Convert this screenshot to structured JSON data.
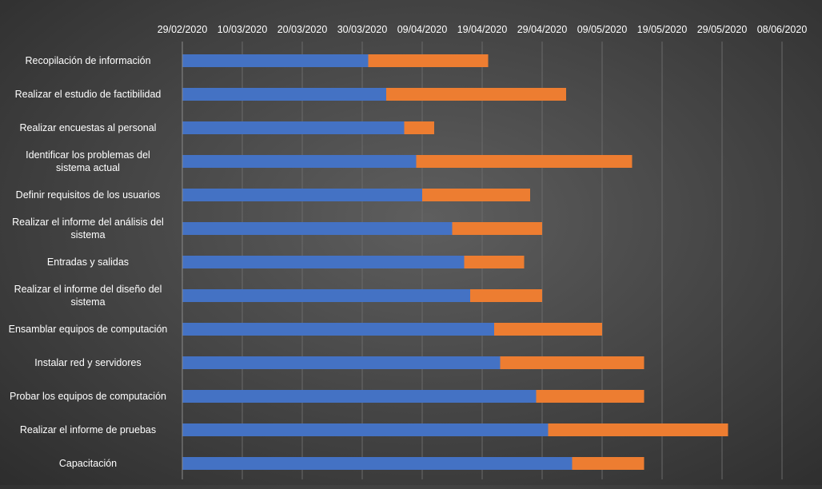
{
  "chart_data": {
    "type": "bar",
    "orientation": "horizontal-stacked",
    "title": "",
    "xlabel": "",
    "ylabel": "",
    "x_axis": {
      "type": "date",
      "position": "top",
      "min": "2020-02-29",
      "max": "2020-06-08",
      "tick_labels": [
        "29/02/2020",
        "10/03/2020",
        "20/03/2020",
        "30/03/2020",
        "09/04/2020",
        "19/04/2020",
        "29/04/2020",
        "09/05/2020",
        "19/05/2020",
        "29/05/2020",
        "08/06/2020"
      ],
      "gridlines": true
    },
    "legend": "none",
    "categories": [
      "Recopilación de información",
      "Realizar el estudio de factibilidad",
      "Realizar encuestas al personal",
      "Identificar los problemas del sistema actual",
      "Definir requisitos de los usuarios",
      "Realizar el informe del análisis del sistema",
      "Entradas y salidas",
      "Realizar el informe del diseño del sistema",
      "Ensamblar equipos de computación",
      "Instalar red y servidores",
      "Probar los equipos de computación",
      "Realizar el informe de pruebas",
      "Capacitación"
    ],
    "series": [
      {
        "role": "start",
        "color": "#4472C4",
        "values": [
          "2020-03-31",
          "2020-04-03",
          "2020-04-06",
          "2020-04-08",
          "2020-04-09",
          "2020-04-14",
          "2020-04-16",
          "2020-04-17",
          "2020-04-21",
          "2020-04-22",
          "2020-04-28",
          "2020-04-30",
          "2020-05-04"
        ]
      },
      {
        "role": "duration",
        "color": "#ED7D31",
        "values": [
          20,
          30,
          5,
          36,
          18,
          15,
          10,
          12,
          18,
          24,
          18,
          30,
          12
        ]
      }
    ]
  }
}
